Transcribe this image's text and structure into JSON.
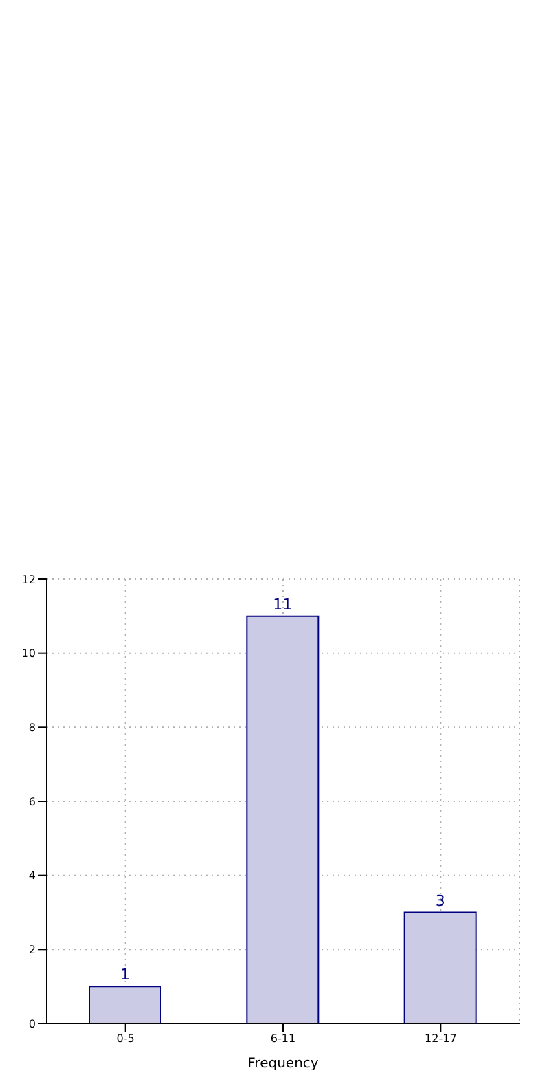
{
  "chart_data": {
    "type": "bar",
    "xlabel": "Frequency",
    "categories": [
      "0-5",
      "6-11",
      "12-17"
    ],
    "values": [
      1,
      11,
      3
    ],
    "color": "#cbcbe5",
    "ylim": [
      0,
      12
    ],
    "yticks": [
      0,
      2,
      4,
      6,
      8,
      10,
      12
    ],
    "grid": true,
    "data_labels": true
  }
}
